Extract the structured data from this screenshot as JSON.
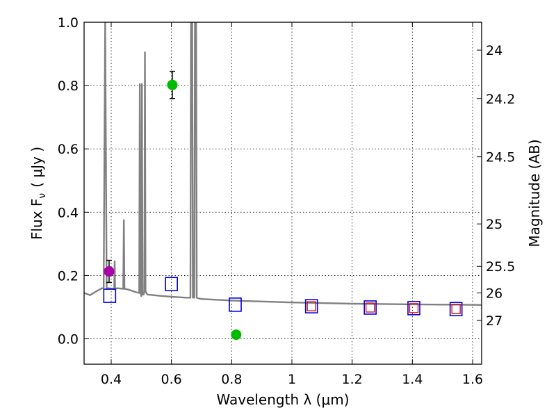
{
  "chart_data": {
    "type": "scatter",
    "title": "",
    "xlabel": "Wavelength  λ (μm)",
    "ylabel": "Flux  F",
    "ylabel_sub": "ν",
    "ylabel_unit": "( μJy )",
    "ylabel_right": "Magnitude (AB)",
    "xlim": [
      0.31,
      1.63
    ],
    "ylim": [
      -0.08,
      1.0
    ],
    "grid": true,
    "xticks": [
      0.4,
      0.6,
      0.8,
      1.0,
      1.2,
      1.4,
      1.6
    ],
    "xtick_labels": [
      "0.4",
      "0.6",
      "0.8",
      "1",
      "1.2",
      "1.4",
      "1.6"
    ],
    "yticks": [
      0.0,
      0.2,
      0.4,
      0.6,
      0.8,
      1.0
    ],
    "ytick_labels": [
      "0.0",
      "0.2",
      "0.4",
      "0.6",
      "0.8",
      "1.0"
    ],
    "right_ticks": [
      {
        "label": "24",
        "flux": 0.912
      },
      {
        "label": "24.2",
        "flux": 0.759
      },
      {
        "label": "24.5",
        "flux": 0.575
      },
      {
        "label": "25",
        "flux": 0.363
      },
      {
        "label": "25.5",
        "flux": 0.229
      },
      {
        "label": "26",
        "flux": 0.145
      },
      {
        "label": "27",
        "flux": 0.058
      }
    ],
    "colors": {
      "spectrum": "#808080",
      "open_blue": "#0000dd",
      "open_red": "#dd0000",
      "green": "#00bb00",
      "magenta": "#aa00aa",
      "error": "#000000"
    },
    "spectrum": {
      "name": "model spectrum",
      "x": [
        0.31,
        0.33,
        0.35,
        0.37,
        0.375,
        0.38,
        0.385,
        0.39,
        0.41,
        0.4115,
        0.413,
        0.42,
        0.44,
        0.442,
        0.444,
        0.46,
        0.48,
        0.493,
        0.495,
        0.497,
        0.499,
        0.5,
        0.502,
        0.504,
        0.506,
        0.508,
        0.51,
        0.512,
        0.514,
        0.52,
        0.56,
        0.6,
        0.65,
        0.663,
        0.665,
        0.667,
        0.669,
        0.671,
        0.676,
        0.678,
        0.68,
        0.682,
        0.684,
        0.69,
        0.7,
        0.8,
        0.9,
        1.0,
        1.1,
        1.2,
        1.3,
        1.4,
        1.5,
        1.55,
        1.63
      ],
      "y": [
        0.145,
        0.138,
        0.15,
        0.16,
        0.16,
        1.0,
        0.16,
        0.16,
        0.158,
        0.245,
        0.158,
        0.16,
        0.158,
        0.375,
        0.158,
        0.155,
        0.148,
        0.145,
        0.805,
        0.145,
        0.14,
        0.135,
        0.805,
        0.14,
        0.14,
        0.14,
        0.15,
        0.905,
        0.15,
        0.14,
        0.136,
        0.133,
        0.13,
        0.13,
        1.0,
        1.0,
        1.0,
        0.13,
        0.13,
        1.0,
        1.0,
        1.0,
        0.13,
        0.128,
        0.126,
        0.121,
        0.118,
        0.115,
        0.113,
        0.111,
        0.11,
        0.109,
        0.108,
        0.108,
        0.107
      ]
    },
    "series": [
      {
        "name": "blue open squares",
        "marker": "square-open",
        "color": "#0000dd",
        "x": [
          0.395,
          0.6,
          0.812,
          1.065,
          1.26,
          1.405,
          1.545
        ],
        "y": [
          0.136,
          0.173,
          0.108,
          0.103,
          0.099,
          0.097,
          0.094
        ]
      },
      {
        "name": "red open squares",
        "marker": "square-open-small",
        "color": "#dd0000",
        "x": [
          1.065,
          1.26,
          1.405,
          1.545
        ],
        "y": [
          0.103,
          0.099,
          0.097,
          0.094
        ]
      },
      {
        "name": "green points",
        "marker": "circle",
        "color": "#00bb00",
        "x": [
          0.603,
          0.815
        ],
        "y": [
          0.802,
          0.013
        ],
        "yerr": [
          0.043,
          0.01
        ]
      },
      {
        "name": "magenta point",
        "marker": "circle",
        "color": "#aa00aa",
        "x": [
          0.393
        ],
        "y": [
          0.213
        ],
        "yerr": [
          0.035
        ]
      }
    ]
  }
}
